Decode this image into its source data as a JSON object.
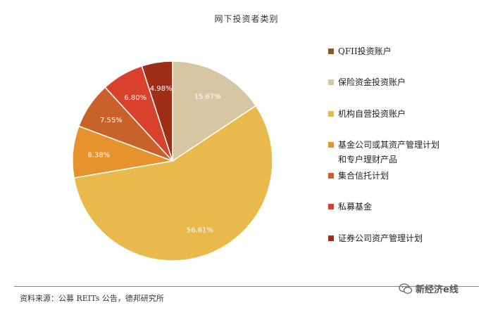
{
  "chart_data": {
    "type": "pie",
    "title": "网下投资者类别",
    "slices": [
      {
        "label": "QFII投资账户",
        "value": 0.0,
        "value_label": "",
        "color": "#8a5a16"
      },
      {
        "label": "保险资金投资账户",
        "value": 15.67,
        "value_label": "15.67%",
        "color": "#d6c6a2"
      },
      {
        "label": "机构自营投资账户",
        "value": 56.61,
        "value_label": "56.61%",
        "color": "#e9ba4b"
      },
      {
        "label": "基金公司或其资产管理计划\n和专户理财产品",
        "value": 8.38,
        "value_label": "8.38%",
        "color": "#e6922d"
      },
      {
        "label": "集合信托计划",
        "value": 7.55,
        "value_label": "7.55%",
        "color": "#c9612a"
      },
      {
        "label": "私募基金",
        "value": 6.8,
        "value_label": "6.80%",
        "color": "#d8412c"
      },
      {
        "label": "证券公司资产管理计划",
        "value": 4.98,
        "value_label": "4.98%",
        "color": "#9e2f16"
      }
    ],
    "legend_position": "right"
  },
  "source": "资料来源：公募 REITs 公告，德邦研究所",
  "watermark": {
    "text": "新经济e线",
    "icon": "wechat-icon"
  }
}
